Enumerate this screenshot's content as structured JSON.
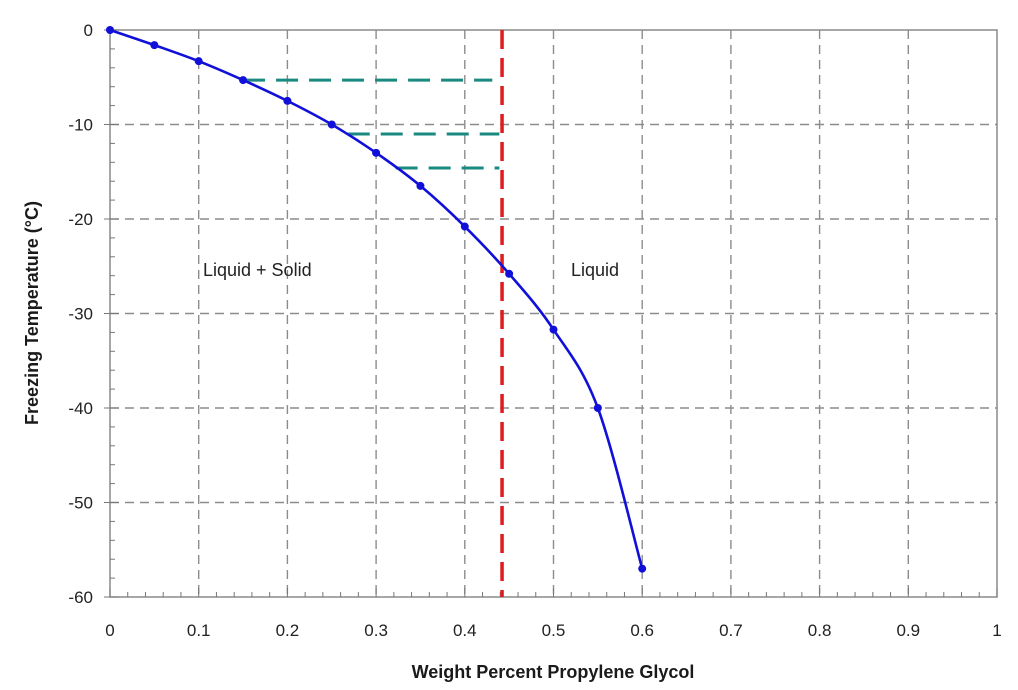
{
  "chart_data": {
    "type": "line",
    "title": "",
    "xlabel": "Weight Percent Propylene Glycol",
    "ylabel": "Freezing Temperature (°C)",
    "xlim": [
      0,
      1
    ],
    "ylim": [
      -60,
      0
    ],
    "x_ticks": [
      "0",
      "0.1",
      "0.2",
      "0.3",
      "0.4",
      "0.5",
      "0.6",
      "0.7",
      "0.8",
      "0.9",
      "1"
    ],
    "y_ticks": [
      "0",
      "-10",
      "-20",
      "-30",
      "-40",
      "-50",
      "-60"
    ],
    "grid": true,
    "legend": null,
    "series": [
      {
        "name": "Freezing curve",
        "color": "#1010d8",
        "markers": true,
        "x": [
          0,
          0.05,
          0.1,
          0.15,
          0.2,
          0.25,
          0.3,
          0.35,
          0.4,
          0.45,
          0.5,
          0.55,
          0.6
        ],
        "y": [
          0,
          -1.6,
          -3.3,
          -5.3,
          -7.5,
          -10.0,
          -13.0,
          -16.5,
          -20.8,
          -25.8,
          -31.7,
          -40.0,
          -57.0
        ]
      }
    ],
    "reference_lines": [
      {
        "name": "composition-line",
        "orientation": "vertical",
        "x": 0.442,
        "color": "#e31a1c",
        "style": "dashed"
      },
      {
        "name": "freeze-line-1",
        "orientation": "horizontal",
        "y": -5.3,
        "x_start": 0.15,
        "x_end": 0.431,
        "color": "#1a8a80",
        "style": "dashed"
      },
      {
        "name": "freeze-line-2",
        "orientation": "horizontal",
        "y": -11.0,
        "x_start": 0.268,
        "x_end": 0.439,
        "color": "#1a8a80",
        "style": "dashed"
      },
      {
        "name": "freeze-line-3",
        "orientation": "horizontal",
        "y": -14.6,
        "x_start": 0.322,
        "x_end": 0.439,
        "color": "#1a8a80",
        "style": "dashed"
      }
    ],
    "annotations": [
      {
        "text": "Liquid + Solid",
        "x": 0.215,
        "y": -25.5
      },
      {
        "text": "Liquid",
        "x": 0.558,
        "y": -25.5
      }
    ]
  },
  "labels": {
    "xlabel": "Weight Percent Propylene Glycol",
    "ylabel": "Freezing Temperature (°C)",
    "region_left": "Liquid + Solid",
    "region_right": "Liquid"
  }
}
